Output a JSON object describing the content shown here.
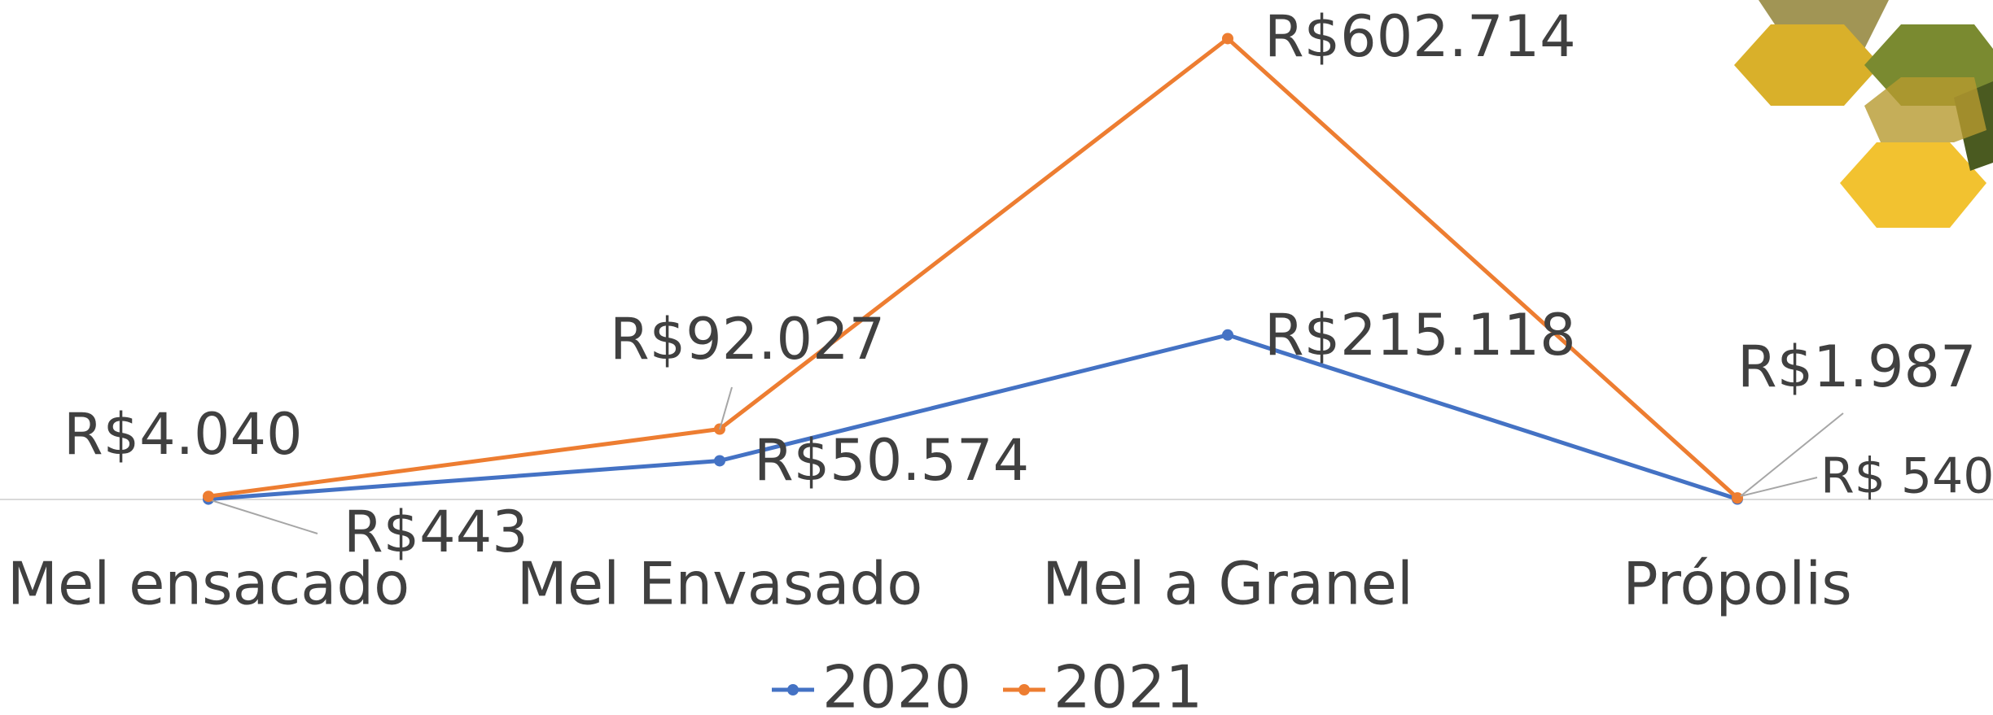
{
  "chart_data": {
    "type": "line",
    "categories": [
      "Mel ensacado",
      "Mel Envasado",
      "Mel a Granel",
      "Própolis"
    ],
    "series": [
      {
        "name": "2020",
        "color": "#4472c4",
        "values": [
          443,
          50574,
          215118,
          540
        ],
        "value_labels": [
          "R$443",
          "R$50.574",
          "R$215.118",
          "R$ 540"
        ]
      },
      {
        "name": "2021",
        "color": "#ed7d31",
        "values": [
          4040,
          92027,
          602714,
          1987
        ],
        "value_labels": [
          "R$4.040",
          "R$92.027",
          "R$602.714",
          "R$1.987"
        ]
      }
    ],
    "ylim": [
      0,
      600000
    ],
    "legend": "bottom"
  }
}
